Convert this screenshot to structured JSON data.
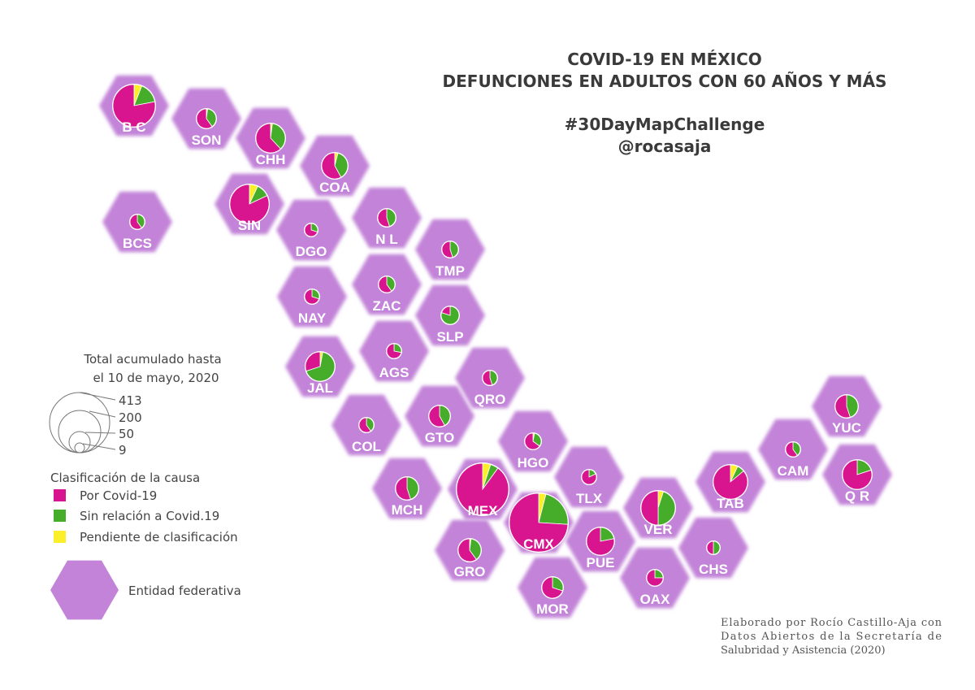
{
  "title_line1": "COVID-19 EN MÉXICO",
  "title_line2": "DEFUNCIONES EN ADULTOS CON 60 AÑOS Y MÁS",
  "hashtag": "#30DayMapChallenge",
  "handle": "@rocasaja",
  "colors": {
    "hexagon": "#c283d8",
    "covid": "#d8148f",
    "no_covid": "#46ad2a",
    "pending": "#fbef2a"
  },
  "legend": {
    "size_title_1": "Total acumulado hasta",
    "size_title_2": "el 10 de mayo, 2020",
    "sizes": [
      "413",
      "200",
      "50",
      "9"
    ],
    "class_title": "Clasificación de la causa",
    "classes": [
      "Por Covid-19",
      "Sin relación a Covid.19",
      "Pendiente de clasificación"
    ],
    "hex_label": "Entidad federativa"
  },
  "credit": [
    "Elaborado por Rocío Castillo-Aja con",
    "Datos Abiertos de la Secretaría de",
    "Salubridad y Asistencia (2020)"
  ],
  "states": [
    {
      "abbr": "B C",
      "covid": 0.78,
      "no_covid": 0.16,
      "pending": 0.06
    },
    {
      "abbr": "SON",
      "covid": 0.6,
      "no_covid": 0.38,
      "pending": 0.02
    },
    {
      "abbr": "CHH",
      "covid": 0.62,
      "no_covid": 0.36,
      "pending": 0.02
    },
    {
      "abbr": "COA",
      "covid": 0.58,
      "no_covid": 0.38,
      "pending": 0.04
    },
    {
      "abbr": "BCS",
      "covid": 0.6,
      "no_covid": 0.4,
      "pending": 0.0
    },
    {
      "abbr": "SIN",
      "covid": 0.82,
      "no_covid": 0.11,
      "pending": 0.07
    },
    {
      "abbr": "DGO",
      "covid": 0.7,
      "no_covid": 0.3,
      "pending": 0.0
    },
    {
      "abbr": "N L",
      "covid": 0.55,
      "no_covid": 0.45,
      "pending": 0.0
    },
    {
      "abbr": "TMP",
      "covid": 0.55,
      "no_covid": 0.45,
      "pending": 0.0
    },
    {
      "abbr": "NAY",
      "covid": 0.7,
      "no_covid": 0.3,
      "pending": 0.0
    },
    {
      "abbr": "ZAC",
      "covid": 0.6,
      "no_covid": 0.4,
      "pending": 0.0
    },
    {
      "abbr": "SLP",
      "covid": 0.2,
      "no_covid": 0.8,
      "pending": 0.0
    },
    {
      "abbr": "JAL",
      "covid": 0.3,
      "no_covid": 0.67,
      "pending": 0.03
    },
    {
      "abbr": "AGS",
      "covid": 0.72,
      "no_covid": 0.28,
      "pending": 0.0
    },
    {
      "abbr": "QRO",
      "covid": 0.55,
      "no_covid": 0.45,
      "pending": 0.0
    },
    {
      "abbr": "COL",
      "covid": 0.6,
      "no_covid": 0.4,
      "pending": 0.0
    },
    {
      "abbr": "GTO",
      "covid": 0.58,
      "no_covid": 0.42,
      "pending": 0.0
    },
    {
      "abbr": "HGO",
      "covid": 0.65,
      "no_covid": 0.32,
      "pending": 0.03
    },
    {
      "abbr": "YUC",
      "covid": 0.55,
      "no_covid": 0.45,
      "pending": 0.0
    },
    {
      "abbr": "CAM",
      "covid": 0.6,
      "no_covid": 0.4,
      "pending": 0.0
    },
    {
      "abbr": "MCH",
      "covid": 0.55,
      "no_covid": 0.45,
      "pending": 0.0
    },
    {
      "abbr": "MEX",
      "covid": 0.9,
      "no_covid": 0.05,
      "pending": 0.05
    },
    {
      "abbr": "TLX",
      "covid": 0.82,
      "no_covid": 0.18,
      "pending": 0.0
    },
    {
      "abbr": "TAB",
      "covid": 0.86,
      "no_covid": 0.07,
      "pending": 0.07
    },
    {
      "abbr": "Q R",
      "covid": 0.8,
      "no_covid": 0.2,
      "pending": 0.0
    },
    {
      "abbr": "CMX",
      "covid": 0.74,
      "no_covid": 0.22,
      "pending": 0.04
    },
    {
      "abbr": "VER",
      "covid": 0.5,
      "no_covid": 0.45,
      "pending": 0.05
    },
    {
      "abbr": "GRO",
      "covid": 0.6,
      "no_covid": 0.38,
      "pending": 0.02
    },
    {
      "abbr": "PUE",
      "covid": 0.78,
      "no_covid": 0.22,
      "pending": 0.0
    },
    {
      "abbr": "CHS",
      "covid": 0.5,
      "no_covid": 0.5,
      "pending": 0.0
    },
    {
      "abbr": "MOR",
      "covid": 0.7,
      "no_covid": 0.3,
      "pending": 0.0
    },
    {
      "abbr": "OAX",
      "covid": 0.75,
      "no_covid": 0.25,
      "pending": 0.0
    }
  ]
}
